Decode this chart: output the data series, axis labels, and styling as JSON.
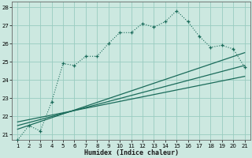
{
  "xlabel": "Humidex (Indice chaleur)",
  "background_color": "#cce8e0",
  "grid_color": "#99ccc0",
  "line_color": "#1a6b5a",
  "xlim": [
    0.5,
    21.5
  ],
  "ylim": [
    20.7,
    28.3
  ],
  "xticks": [
    1,
    2,
    3,
    4,
    5,
    6,
    7,
    8,
    9,
    10,
    11,
    12,
    13,
    14,
    15,
    16,
    17,
    18,
    19,
    20,
    21
  ],
  "yticks": [
    21,
    22,
    23,
    24,
    25,
    26,
    27,
    28
  ],
  "main_line_x": [
    1,
    2,
    3,
    4,
    5,
    6,
    7,
    8,
    9,
    10,
    11,
    12,
    13,
    14,
    15,
    16,
    17,
    18,
    19,
    20,
    21
  ],
  "main_line_y": [
    20.7,
    21.5,
    21.2,
    22.8,
    24.9,
    24.8,
    25.3,
    25.3,
    26.0,
    26.6,
    26.6,
    27.1,
    26.9,
    27.2,
    27.8,
    27.2,
    26.4,
    25.8,
    25.9,
    25.7,
    24.7
  ],
  "trend_line1_x": [
    1,
    21
  ],
  "trend_line1_y": [
    21.3,
    25.5
  ],
  "trend_line2_x": [
    1,
    21
  ],
  "trend_line2_y": [
    21.5,
    24.8
  ],
  "trend_line3_x": [
    1,
    21
  ],
  "trend_line3_y": [
    21.7,
    24.2
  ]
}
